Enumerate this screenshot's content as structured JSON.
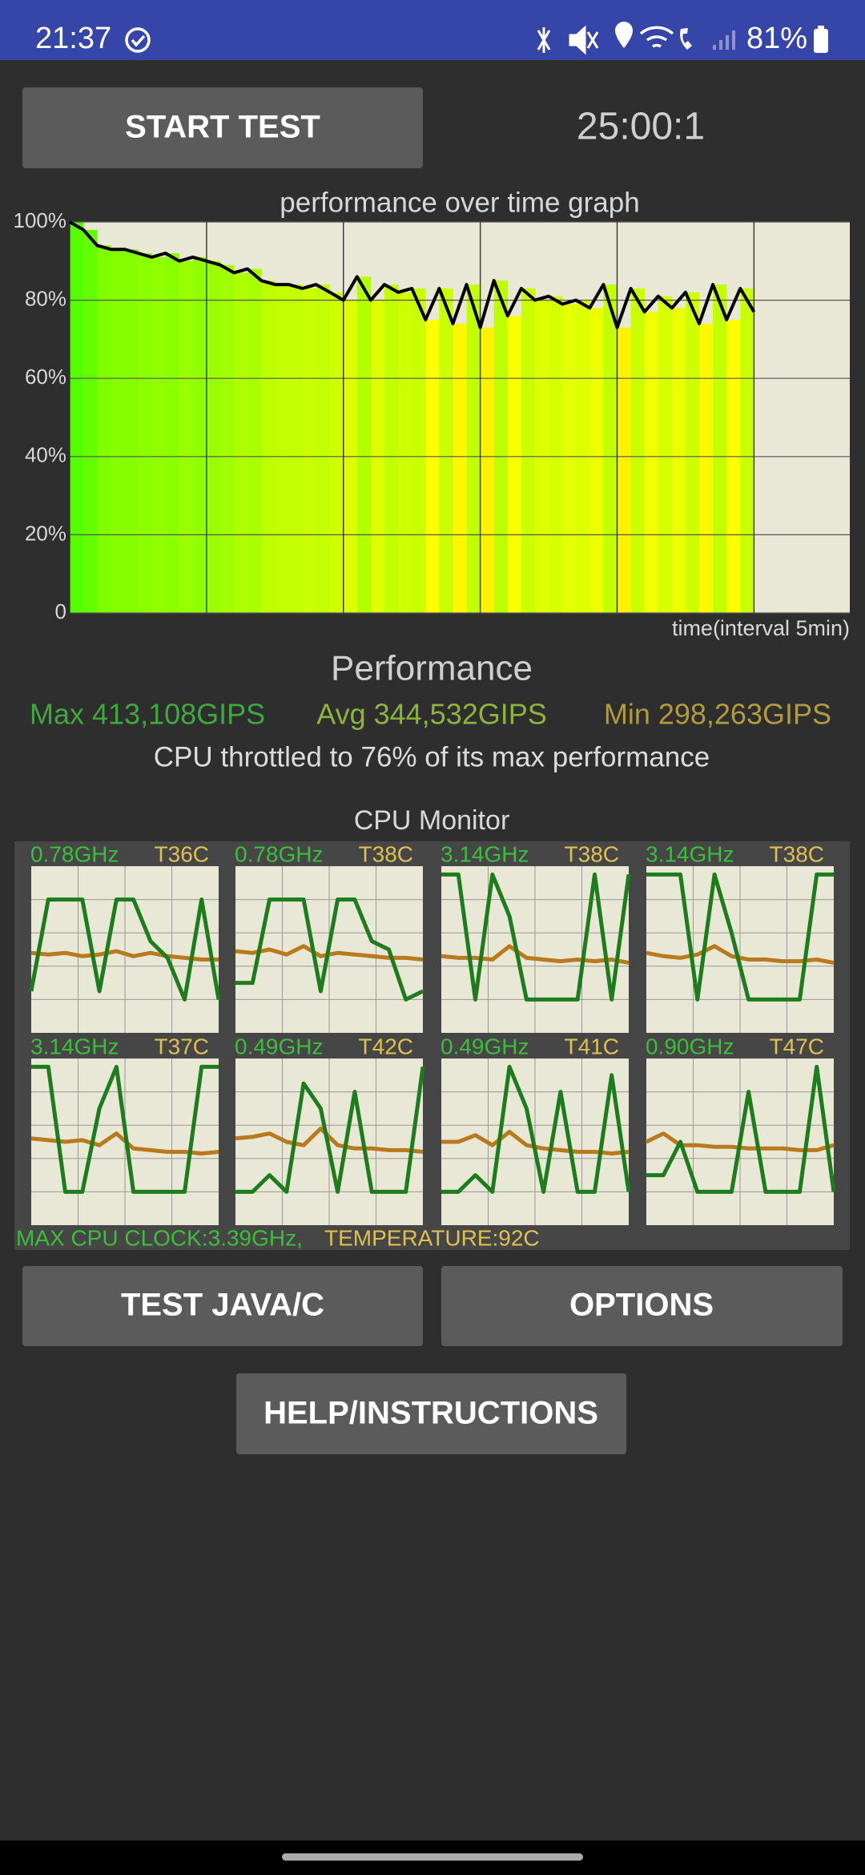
{
  "status_bar": {
    "time": "21:37",
    "battery": "81%"
  },
  "buttons": {
    "start": "START TEST",
    "test_java": "TEST JAVA/C",
    "options": "OPTIONS",
    "help": "HELP/INSTRUCTIONS"
  },
  "timer": "25:00:1",
  "chart_data": {
    "type": "line",
    "title": "performance over time graph",
    "x_label": "time(interval 5min)",
    "x": [
      0,
      0.5,
      1,
      1.5,
      2,
      2.5,
      3,
      3.5,
      4,
      4.5,
      5,
      5.5,
      6,
      6.5,
      7,
      7.5,
      8,
      8.5,
      9,
      9.5,
      10,
      10.5,
      11,
      11.5,
      12,
      12.5,
      13,
      13.5,
      14,
      14.5,
      15,
      15.5,
      16,
      16.5,
      17,
      17.5,
      18,
      18.5,
      19,
      19.5,
      20,
      20.5,
      21,
      21.5,
      22,
      22.5,
      23,
      23.5,
      24,
      24.5,
      25
    ],
    "series": [
      {
        "color": "#000000",
        "values": [
          100,
          98,
          94,
          93,
          93,
          92,
          91,
          92,
          90,
          91,
          90,
          89,
          87,
          88,
          85,
          84,
          84,
          83,
          84,
          82,
          80,
          86,
          80,
          84,
          82,
          83,
          75,
          83,
          74,
          84,
          73,
          85,
          76,
          83,
          80,
          81,
          79,
          80,
          78,
          84,
          73,
          83,
          77,
          81,
          78,
          82,
          74,
          84,
          75,
          83,
          77
        ]
      }
    ],
    "xlim": [
      0,
      28.5
    ],
    "xticks": [
      0,
      5,
      10,
      15,
      20,
      25
    ],
    "ylim": [
      0,
      100
    ],
    "yticks": [
      0,
      {
        "value": 20,
        "label": "20%"
      },
      {
        "value": 40,
        "label": "40%"
      },
      {
        "value": 60,
        "label": "60%"
      },
      {
        "value": 80,
        "label": "80%"
      },
      {
        "value": 100,
        "label": "100%"
      }
    ],
    "grid": true
  },
  "performance": {
    "title": "Performance",
    "max": "Max 413,108GIPS",
    "avg": "Avg 344,532GIPS",
    "min": "Min 298,263GIPS",
    "summary": "CPU throttled to 76% of its max performance"
  },
  "cpu_monitor": {
    "title": "CPU Monitor",
    "ylim": [
      0,
      100
    ],
    "clock_color": "#1d7d1d",
    "temp_color": "#b87a1c",
    "cores": [
      {
        "frequency": "0.78GHz",
        "temperature": "T36C",
        "clock": [
          25,
          80,
          80,
          80,
          25,
          80,
          80,
          55,
          45,
          20,
          80,
          20
        ],
        "temp": [
          48,
          47,
          48,
          46,
          47,
          49,
          46,
          48,
          46,
          45,
          44,
          44
        ]
      },
      {
        "frequency": "0.78GHz",
        "temperature": "T38C",
        "clock": [
          30,
          30,
          80,
          80,
          80,
          25,
          80,
          80,
          55,
          50,
          20,
          25
        ],
        "temp": [
          49,
          48,
          50,
          47,
          52,
          46,
          48,
          47,
          46,
          45,
          45,
          44
        ]
      },
      {
        "frequency": "3.14GHz",
        "temperature": "T38C",
        "clock": [
          95,
          95,
          20,
          95,
          70,
          20,
          20,
          20,
          20,
          95,
          20,
          95
        ],
        "temp": [
          46,
          45,
          45,
          44,
          52,
          45,
          44,
          43,
          44,
          43,
          44,
          42
        ]
      },
      {
        "frequency": "3.14GHz",
        "temperature": "T38C",
        "clock": [
          95,
          95,
          95,
          20,
          95,
          60,
          20,
          20,
          20,
          20,
          95,
          95
        ],
        "temp": [
          48,
          46,
          45,
          47,
          52,
          46,
          44,
          44,
          43,
          43,
          44,
          42
        ]
      },
      {
        "frequency": "3.14GHz",
        "temperature": "T37C",
        "clock": [
          95,
          95,
          20,
          20,
          70,
          95,
          20,
          20,
          20,
          20,
          95,
          95
        ],
        "temp": [
          52,
          51,
          50,
          51,
          48,
          55,
          46,
          45,
          44,
          44,
          43,
          44
        ]
      },
      {
        "frequency": "0.49GHz",
        "temperature": "T42C",
        "clock": [
          20,
          20,
          30,
          20,
          85,
          70,
          20,
          80,
          20,
          20,
          20,
          95
        ],
        "temp": [
          52,
          53,
          55,
          50,
          48,
          58,
          48,
          46,
          46,
          45,
          45,
          44
        ]
      },
      {
        "frequency": "0.49GHz",
        "temperature": "T41C",
        "clock": [
          20,
          20,
          30,
          20,
          95,
          70,
          20,
          80,
          20,
          20,
          90,
          20
        ],
        "temp": [
          50,
          50,
          54,
          48,
          56,
          48,
          46,
          45,
          44,
          44,
          43,
          44
        ]
      },
      {
        "frequency": "0.90GHz",
        "temperature": "T47C",
        "clock": [
          30,
          30,
          50,
          20,
          20,
          20,
          80,
          20,
          20,
          20,
          95,
          20
        ],
        "temp": [
          50,
          55,
          48,
          48,
          47,
          47,
          46,
          46,
          46,
          45,
          45,
          48
        ]
      }
    ],
    "footer_clock": "MAX CPU CLOCK:3.39GHz,",
    "footer_temp": "TEMPERATURE:92C"
  }
}
